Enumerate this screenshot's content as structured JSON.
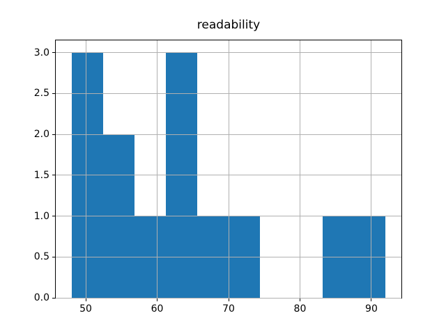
{
  "chart_data": {
    "type": "bar",
    "subtype": "histogram",
    "title": "readability",
    "xlabel": "",
    "ylabel": "",
    "bin_edges": [
      48.0,
      52.4,
      56.8,
      61.2,
      65.6,
      70.0,
      74.4,
      78.8,
      83.2,
      87.6,
      92.0
    ],
    "counts": [
      3,
      2,
      1,
      3,
      1,
      1,
      0,
      0,
      1,
      1
    ],
    "xlim": [
      45.8,
      94.2
    ],
    "ylim": [
      0,
      3.15
    ],
    "xticks": [
      50,
      60,
      70,
      80,
      90
    ],
    "yticks": [
      0.0,
      0.5,
      1.0,
      1.5,
      2.0,
      2.5,
      3.0
    ],
    "xtick_labels": [
      "50",
      "60",
      "70",
      "80",
      "90"
    ],
    "ytick_labels": [
      "0.0",
      "0.5",
      "1.0",
      "1.5",
      "2.0",
      "2.5",
      "3.0"
    ],
    "grid": true,
    "grid_above_bars": true,
    "legend": "none",
    "colors": {
      "bar": "#1f77b4",
      "grid": "#b0b0b0",
      "spine": "#000000",
      "text": "#000000",
      "background": "#ffffff"
    }
  }
}
